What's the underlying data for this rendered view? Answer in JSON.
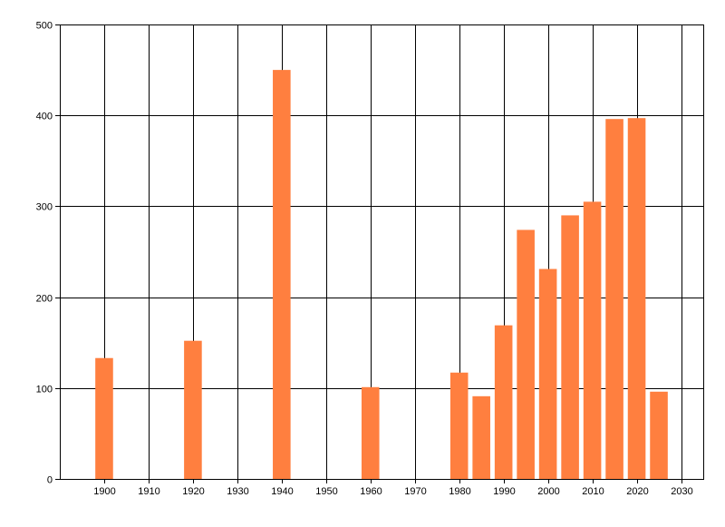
{
  "chart_data": {
    "type": "bar",
    "title": "",
    "xlabel": "",
    "ylabel": "",
    "xlim": [
      1890,
      2035
    ],
    "ylim": [
      0,
      500
    ],
    "x_ticks": [
      1900,
      1910,
      1920,
      1930,
      1940,
      1950,
      1960,
      1970,
      1980,
      1990,
      2000,
      2010,
      2020,
      2030
    ],
    "y_ticks": [
      0,
      100,
      200,
      300,
      400,
      500
    ],
    "grid": true,
    "bar_color": "#ff7f3f",
    "axis_color": "#000000",
    "background_color": "#ffffff",
    "x": [
      1900,
      1920,
      1940,
      1960,
      1980,
      1985,
      1990,
      1995,
      2000,
      2005,
      2010,
      2015,
      2020,
      2025
    ],
    "values": [
      133,
      152,
      450,
      101,
      117,
      91,
      169,
      274,
      231,
      290,
      305,
      396,
      397,
      96
    ],
    "bar_width": 4
  }
}
